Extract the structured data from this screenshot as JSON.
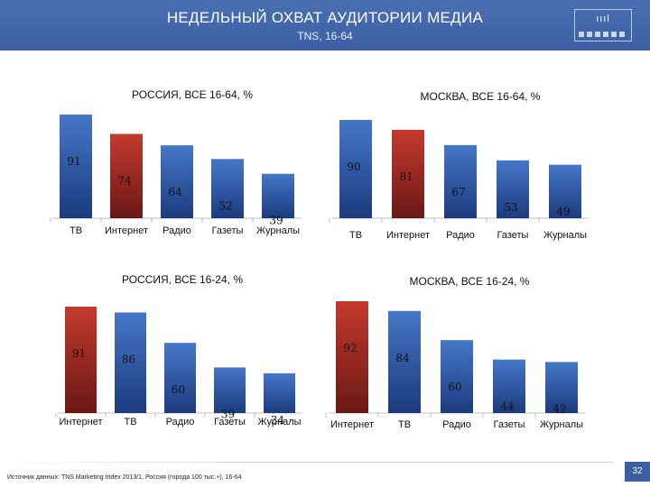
{
  "header": {
    "title": "НЕДЕЛЬНЫЙ ОХВАТ АУДИТОРИИ МЕДИА",
    "subtitle": "TNS, 16-64",
    "logo_symbol": "ıııl"
  },
  "colors": {
    "blue_top": "#3f6fc0",
    "blue_bottom": "#1e3f84",
    "red_top": "#c0392b",
    "red_bottom": "#6e1a17",
    "header": "#3c5fa3"
  },
  "chart_data": [
    {
      "type": "bar",
      "title": "РОССИЯ, ВСЕ 16-64, %",
      "categories": [
        "ТВ",
        "Интернет",
        "Радио",
        "Газеты",
        "Журналы"
      ],
      "values": [
        91,
        74,
        64,
        52,
        39
      ],
      "highlight": [
        1
      ],
      "ylim": [
        0,
        100
      ]
    },
    {
      "type": "bar",
      "title": "МОСКВА, ВСЕ 16-64, %",
      "categories": [
        "ТВ",
        "Интернет",
        "Радио",
        "Газеты",
        "Журналы"
      ],
      "values": [
        90,
        81,
        67,
        53,
        49
      ],
      "highlight": [
        1
      ],
      "ylim": [
        0,
        100
      ]
    },
    {
      "type": "bar",
      "title": "РОССИЯ, ВСЕ 16-24, %",
      "categories": [
        "Интернет",
        "ТВ",
        "Радио",
        "Газеты",
        "Журналы"
      ],
      "values": [
        91,
        86,
        60,
        39,
        34
      ],
      "highlight": [
        0
      ],
      "ylim": [
        0,
        100
      ]
    },
    {
      "type": "bar",
      "title": "МОСКВА, ВСЕ 16-24, %",
      "categories": [
        "Интернет",
        "ТВ",
        "Радио",
        "Газеты",
        "Журналы"
      ],
      "values": [
        92,
        84,
        60,
        44,
        42
      ],
      "highlight": [
        0
      ],
      "ylim": [
        0,
        100
      ]
    }
  ],
  "footer": {
    "source": "Источник данных: TNS Marketing Index 2013/1, Россия (города 100 тыс.+), 16-64",
    "page_number": "32"
  }
}
